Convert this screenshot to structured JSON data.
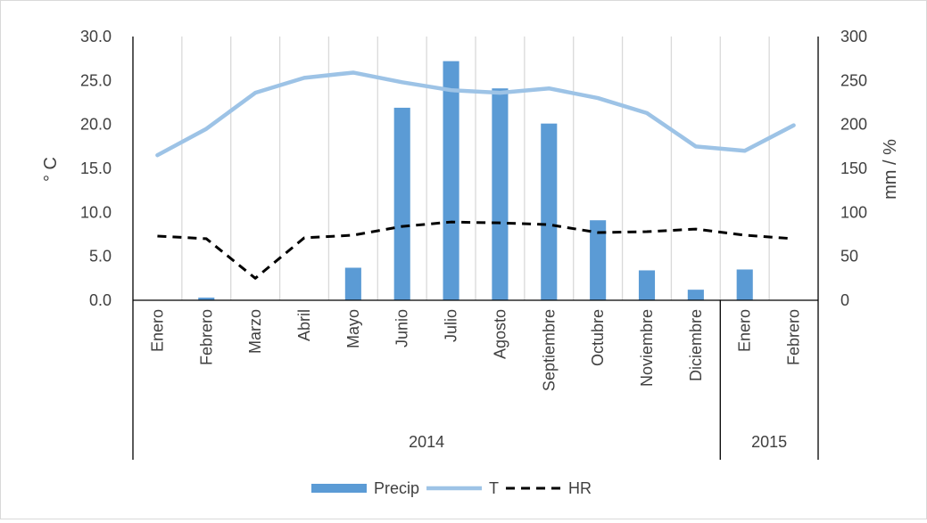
{
  "chart_data": {
    "type": "bar",
    "categories": [
      "Enero",
      "Febrero",
      "Marzo",
      "Abril",
      "Mayo",
      "Junio",
      "Julio",
      "Agosto",
      "Septiembre",
      "Octubre",
      "Noviembre",
      "Diciembre",
      "Enero",
      "Febrero"
    ],
    "groups": [
      {
        "label": "2014",
        "span": 12
      },
      {
        "label": "2015",
        "span": 2
      }
    ],
    "ylabel": "° C",
    "y2label": "mm / %",
    "ylim": [
      0,
      30
    ],
    "y2lim": [
      0,
      300
    ],
    "yticks": [
      "0.0",
      "5.0",
      "10.0",
      "15.0",
      "20.0",
      "25.0",
      "30.0"
    ],
    "y2ticks": [
      "0",
      "50",
      "100",
      "150",
      "200",
      "250",
      "300"
    ],
    "vertical_grid": true,
    "legend_position": "bottom",
    "series": [
      {
        "name": "Precip",
        "type": "bar",
        "axis": "right",
        "color": "#5b9bd5",
        "values": [
          0,
          3,
          0,
          0,
          37,
          219,
          272,
          241,
          201,
          91,
          34,
          12,
          35,
          0
        ]
      },
      {
        "name": "T",
        "type": "line",
        "axis": "left",
        "color": "#9dc3e6",
        "values": [
          16.5,
          19.5,
          23.6,
          25.3,
          25.9,
          24.8,
          23.9,
          23.6,
          24.1,
          23.0,
          21.3,
          17.5,
          17.0,
          19.9
        ]
      },
      {
        "name": "HR",
        "type": "line",
        "axis": "right",
        "color": "#000000",
        "dashed": true,
        "values": [
          73,
          70,
          25,
          71,
          74,
          84,
          89,
          88,
          86,
          77,
          78,
          81,
          74,
          70
        ]
      }
    ]
  }
}
